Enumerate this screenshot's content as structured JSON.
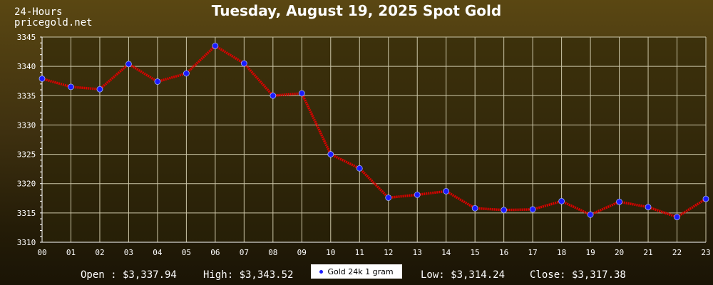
{
  "header": {
    "period": "24-Hours",
    "site": "pricegold.net",
    "title": "Tuesday, August 19, 2025 Spot Gold"
  },
  "footer": {
    "open": "Open : $3,337.94",
    "high": "High: $3,343.52",
    "low": "Low: $3,314.24",
    "close": "Close: $3,317.38"
  },
  "colors": {
    "line": "#dd0000",
    "marker": "#1b1bff",
    "plot_bg": "#2c2508",
    "grid": "#ccc6a8"
  },
  "chart_data": {
    "type": "line",
    "title": "Tuesday, August 19, 2025 Spot Gold",
    "xlabel": "",
    "ylabel": "",
    "categories": [
      "00",
      "01",
      "02",
      "03",
      "04",
      "05",
      "06",
      "07",
      "08",
      "09",
      "10",
      "11",
      "12",
      "13",
      "14",
      "15",
      "16",
      "17",
      "18",
      "19",
      "20",
      "21",
      "22",
      "23"
    ],
    "yticks": [
      3310,
      3315,
      3320,
      3325,
      3330,
      3335,
      3340,
      3345
    ],
    "ylim": [
      3310,
      3345
    ],
    "grid": true,
    "legend_position": "bottom-center",
    "series": [
      {
        "name": "Gold 24k 1 gram",
        "values": [
          3337.9,
          3336.5,
          3336.1,
          3340.4,
          3337.4,
          3338.8,
          3343.5,
          3340.5,
          3335.0,
          3335.4,
          3325.0,
          3322.6,
          3317.6,
          3318.1,
          3318.7,
          3315.8,
          3315.5,
          3315.6,
          3317.0,
          3314.7,
          3316.9,
          3316.0,
          3314.3,
          3317.4
        ]
      }
    ]
  }
}
